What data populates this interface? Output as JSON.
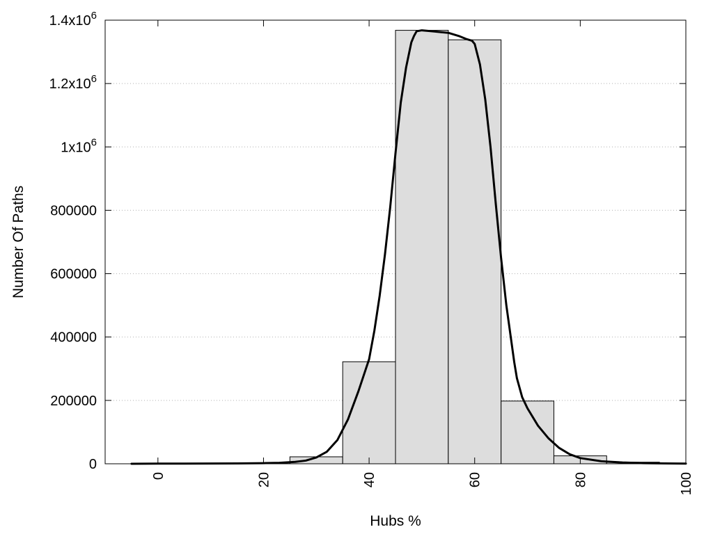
{
  "chart_data": {
    "type": "bar",
    "title": "",
    "xlabel": "Hubs %",
    "ylabel": "Number Of Paths",
    "xlim": [
      -10,
      100
    ],
    "ylim": [
      0,
      1400000
    ],
    "grid": true,
    "x_ticks": [
      0,
      20,
      40,
      60,
      80,
      100
    ],
    "y_ticks": [
      {
        "value": 0,
        "base": "0",
        "exp": ""
      },
      {
        "value": 200000,
        "base": "200000",
        "exp": ""
      },
      {
        "value": 400000,
        "base": "400000",
        "exp": ""
      },
      {
        "value": 600000,
        "base": "600000",
        "exp": ""
      },
      {
        "value": 800000,
        "base": "800000",
        "exp": ""
      },
      {
        "value": 1000000,
        "base": "1x10",
        "exp": "6"
      },
      {
        "value": 1200000,
        "base": "1.2x10",
        "exp": "6"
      },
      {
        "value": 1400000,
        "base": "1.4x10",
        "exp": "6"
      }
    ],
    "bin_width": 10,
    "categories": [
      0,
      10,
      20,
      30,
      40,
      50,
      60,
      70,
      80,
      90
    ],
    "values": [
      2000,
      2000,
      3000,
      22000,
      322000,
      1368000,
      1338000,
      198000,
      25000,
      5000
    ],
    "fit_curve": {
      "x": [
        -5,
        0,
        5,
        10,
        15,
        20,
        23,
        26,
        28,
        30,
        32,
        34,
        36,
        38,
        40,
        41,
        42,
        43,
        44,
        45,
        46,
        47,
        48,
        48.5,
        49,
        50,
        52,
        55,
        57,
        58.5,
        59.5,
        60,
        61,
        62,
        63,
        64,
        65,
        66,
        67,
        67.5,
        68,
        69,
        70,
        72,
        74,
        76,
        78,
        80,
        84,
        88,
        92,
        96,
        100
      ],
      "y": [
        0,
        500,
        500,
        800,
        1000,
        2000,
        3000,
        6000,
        10000,
        20000,
        38000,
        75000,
        140000,
        230000,
        330000,
        420000,
        530000,
        660000,
        810000,
        980000,
        1140000,
        1250000,
        1330000,
        1350000,
        1365000,
        1368000,
        1365000,
        1360000,
        1350000,
        1340000,
        1335000,
        1325000,
        1260000,
        1150000,
        1000000,
        820000,
        650000,
        500000,
        380000,
        320000,
        270000,
        210000,
        175000,
        120000,
        80000,
        50000,
        30000,
        18000,
        8000,
        4000,
        2000,
        1000,
        500
      ]
    }
  }
}
